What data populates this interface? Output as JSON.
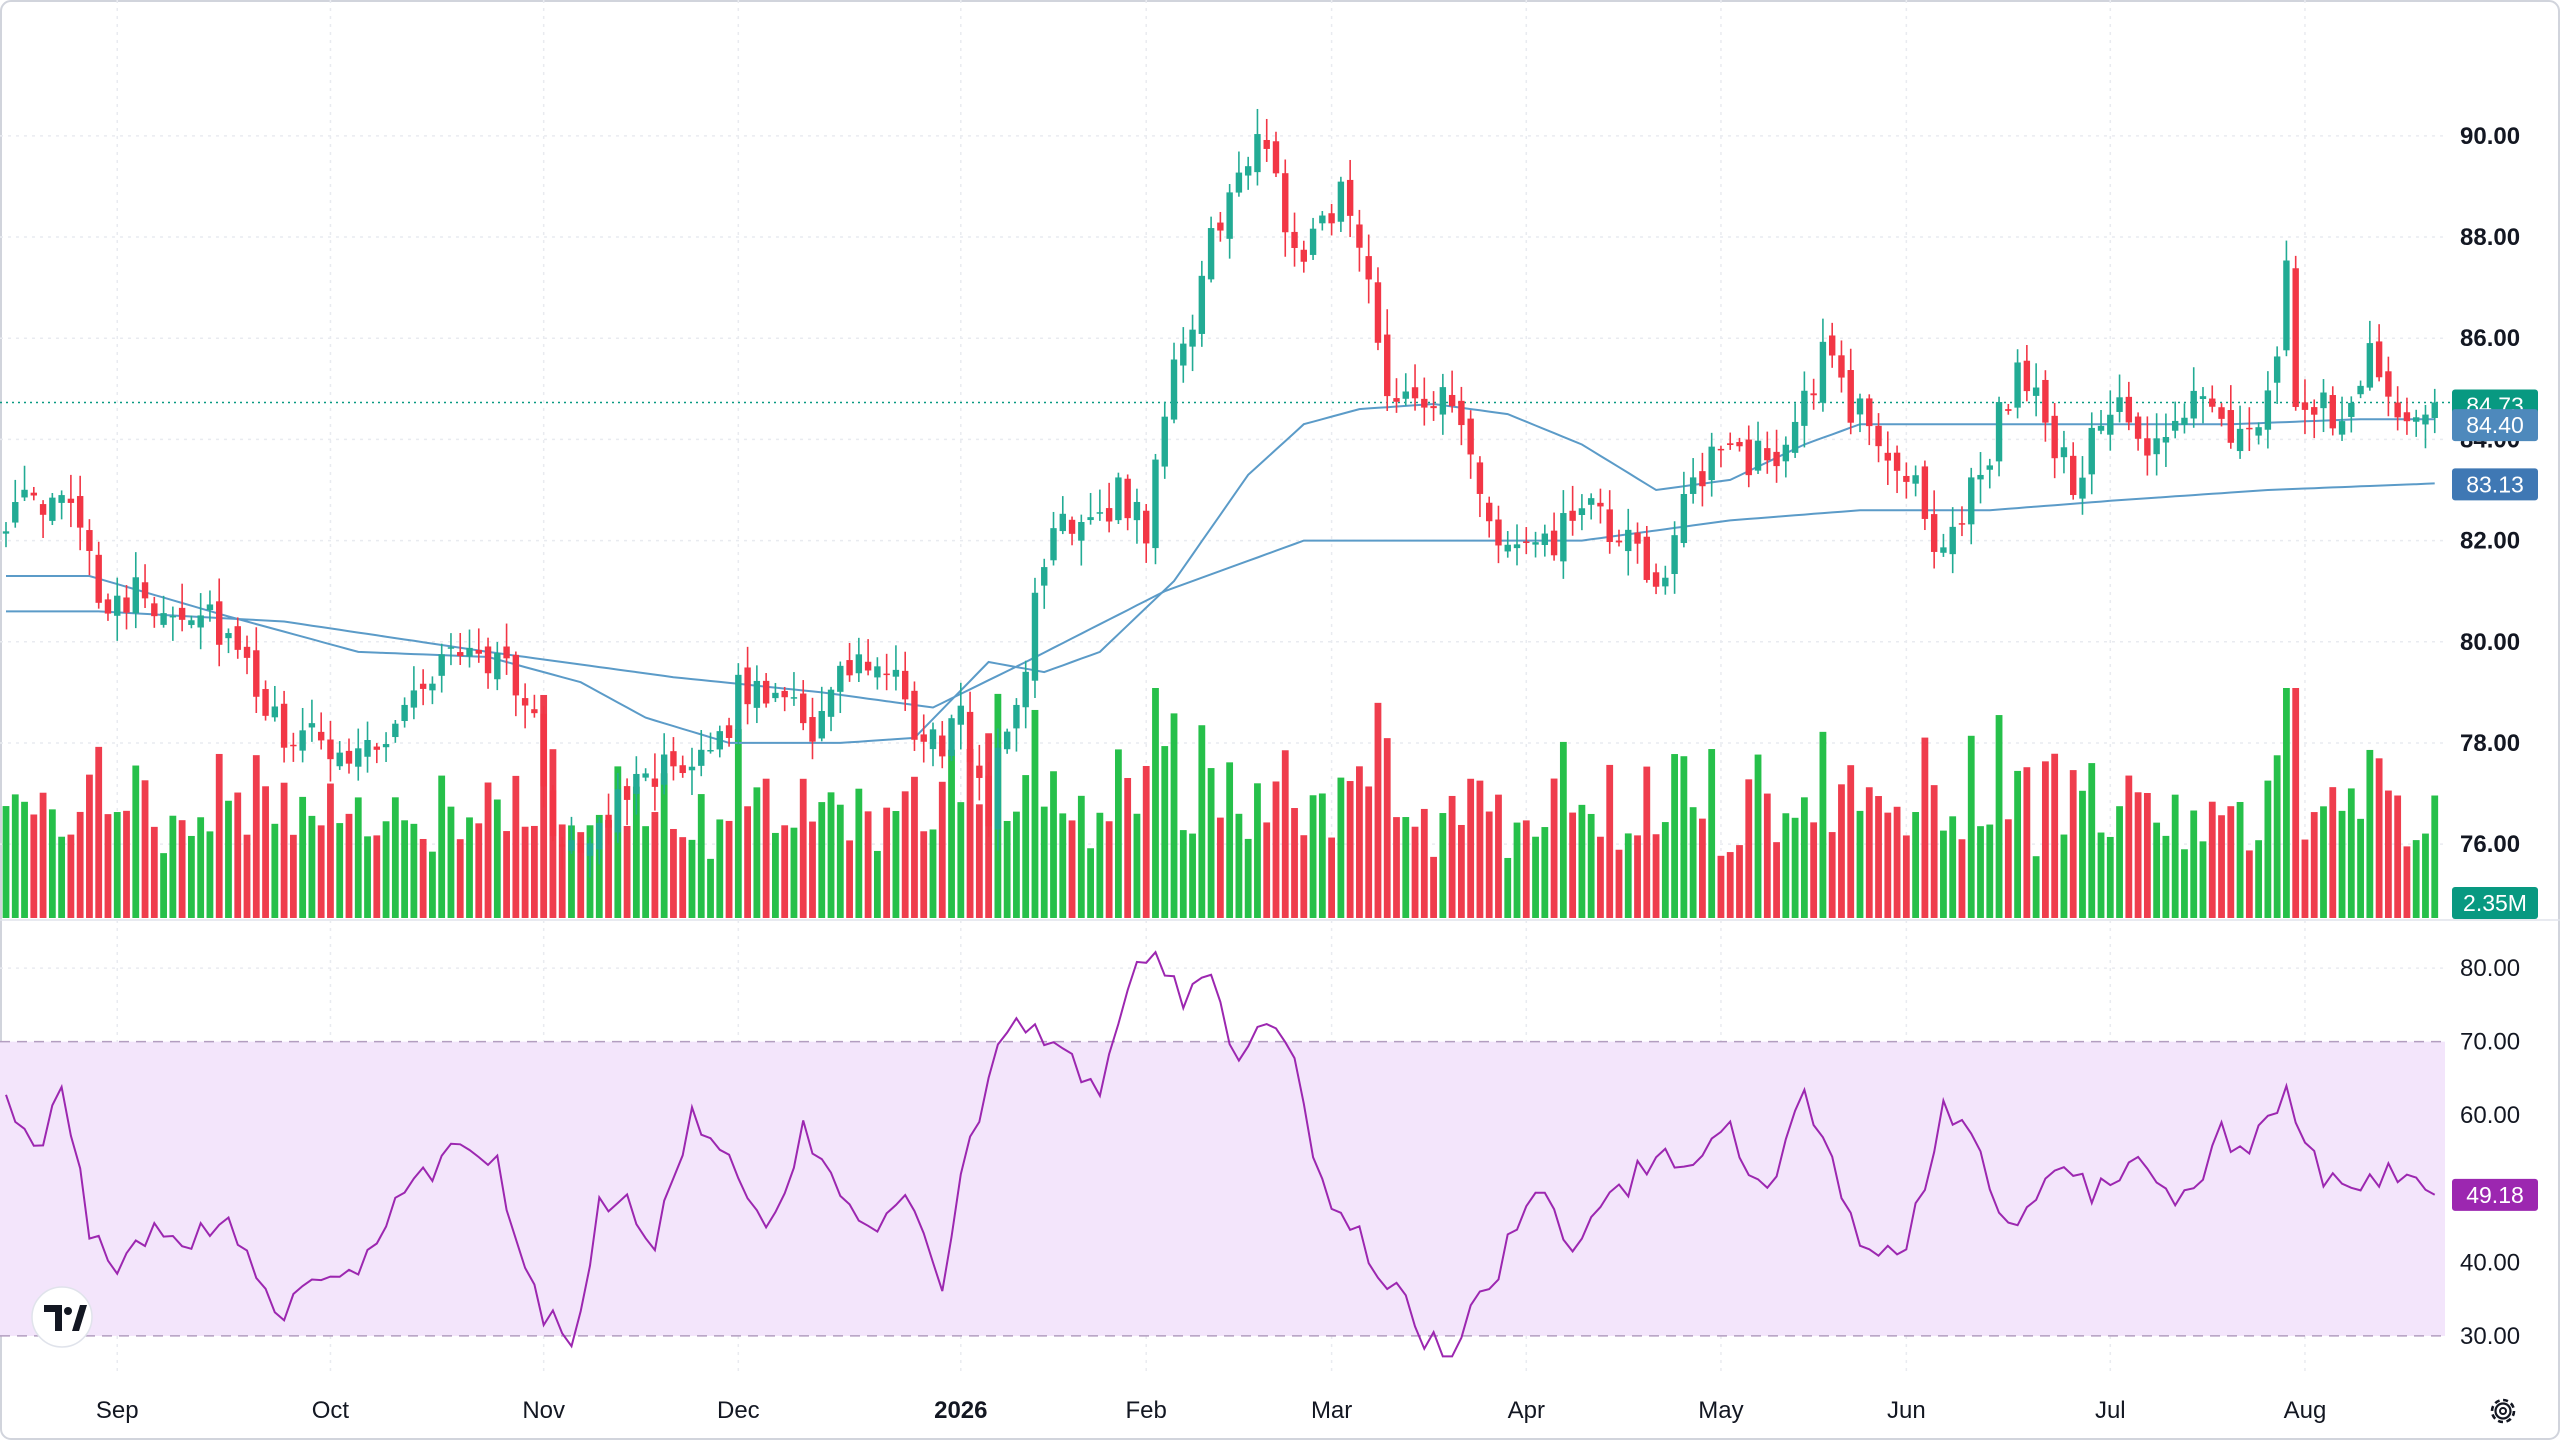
{
  "chart_data": {
    "type": "candlestick",
    "price_pane": {
      "y_ticks": [
        76,
        78,
        80,
        82,
        84,
        86,
        88,
        90
      ],
      "y_tick_labels": [
        "76.00",
        "78.00",
        "80.00",
        "82.00",
        "84.00",
        "86.00",
        "88.00",
        "90.00"
      ],
      "ylim": [
        74.5,
        91.5
      ],
      "last_price": 84.73,
      "last_price_label": "84.73",
      "ma_short_label": "84.40",
      "ma_short_value": 84.4,
      "ma_long_label": "83.13",
      "ma_long_value": 83.13,
      "volume_label": "2.35M"
    },
    "x_axis": {
      "labels": [
        "Sep",
        "Oct",
        "Nov",
        "Dec",
        "2026",
        "Feb",
        "Mar",
        "Apr",
        "May",
        "Jun",
        "Jul",
        "Aug"
      ],
      "bold_labels": [
        "2026"
      ],
      "label_bar_index": [
        12,
        35,
        58,
        79,
        103,
        123,
        143,
        164,
        185,
        205,
        227,
        248
      ]
    },
    "rsi_pane": {
      "y_ticks": [
        30,
        40,
        50,
        60,
        70,
        80
      ],
      "y_tick_labels": [
        "30.00",
        "40.00",
        "",
        "60.00",
        "70.00",
        "80.00"
      ],
      "ylim": [
        27,
        83
      ],
      "band": [
        30,
        70
      ],
      "last_value": 49.18,
      "last_label": "49.18"
    },
    "colors": {
      "up": "#22ab94",
      "down": "#f23645",
      "vol_up": "#26c04a",
      "vol_down": "#ef3d4d",
      "ma": "#5b9bc8",
      "rsi": "#9c27b0",
      "rsi_band": "#f3e5fb",
      "last_tag": "#089981",
      "ma_short_tag": "#4e89bc",
      "ma_long_tag": "#3f78b4",
      "rsi_tag": "#9c27b0"
    },
    "anchors": [
      [
        0,
        82.6
      ],
      [
        8,
        82.6
      ],
      [
        10,
        81.0
      ],
      [
        22,
        80.6
      ],
      [
        29,
        78.3
      ],
      [
        34,
        77.9
      ],
      [
        40,
        78.0
      ],
      [
        46,
        79.4
      ],
      [
        50,
        80.0
      ],
      [
        55,
        79.3
      ],
      [
        57,
        78.2
      ],
      [
        59,
        76.3
      ],
      [
        64,
        76.0
      ],
      [
        68,
        77.7
      ],
      [
        74,
        77.1
      ],
      [
        79,
        78.9
      ],
      [
        84,
        79.2
      ],
      [
        87,
        78.3
      ],
      [
        92,
        79.7
      ],
      [
        96,
        79.0
      ],
      [
        99,
        77.9
      ],
      [
        103,
        78.3
      ],
      [
        106,
        76.8
      ],
      [
        110,
        79.7
      ],
      [
        113,
        82.3
      ],
      [
        120,
        82.9
      ],
      [
        123,
        82.3
      ],
      [
        125,
        84.5
      ],
      [
        131,
        88.5
      ],
      [
        136,
        90.0
      ],
      [
        139,
        87.6
      ],
      [
        144,
        88.9
      ],
      [
        147,
        87.1
      ],
      [
        149,
        85.2
      ],
      [
        156,
        84.6
      ],
      [
        160,
        82.2
      ],
      [
        165,
        81.6
      ],
      [
        170,
        82.6
      ],
      [
        174,
        82.0
      ],
      [
        178,
        81.2
      ],
      [
        181,
        82.6
      ],
      [
        186,
        84.0
      ],
      [
        190,
        83.4
      ],
      [
        196,
        85.6
      ],
      [
        199,
        84.6
      ],
      [
        203,
        83.9
      ],
      [
        209,
        81.8
      ],
      [
        212,
        82.9
      ],
      [
        217,
        85.4
      ],
      [
        223,
        83.2
      ],
      [
        227,
        84.6
      ],
      [
        232,
        83.6
      ],
      [
        237,
        85.0
      ],
      [
        241,
        84.0
      ],
      [
        245,
        85.3
      ],
      [
        246,
        87.2
      ],
      [
        247,
        84.8
      ],
      [
        252,
        84.5
      ],
      [
        255,
        85.9
      ],
      [
        258,
        84.6
      ],
      [
        262,
        84.73
      ]
    ],
    "rsi_anchors": [
      [
        0,
        61
      ],
      [
        3,
        54
      ],
      [
        6,
        64
      ],
      [
        9,
        45
      ],
      [
        12,
        40
      ],
      [
        15,
        44
      ],
      [
        19,
        43
      ],
      [
        24,
        46
      ],
      [
        29,
        32
      ],
      [
        34,
        39
      ],
      [
        38,
        38
      ],
      [
        43,
        50
      ],
      [
        48,
        55
      ],
      [
        53,
        53
      ],
      [
        58,
        33
      ],
      [
        61,
        29
      ],
      [
        64,
        47
      ],
      [
        67,
        48
      ],
      [
        70,
        42
      ],
      [
        74,
        60
      ],
      [
        77,
        57
      ],
      [
        82,
        43
      ],
      [
        86,
        58
      ],
      [
        90,
        51
      ],
      [
        93,
        43
      ],
      [
        97,
        48
      ],
      [
        101,
        38
      ],
      [
        104,
        56
      ],
      [
        108,
        72
      ],
      [
        112,
        71
      ],
      [
        118,
        62
      ],
      [
        121,
        78
      ],
      [
        124,
        81
      ],
      [
        127,
        75
      ],
      [
        130,
        79
      ],
      [
        133,
        67
      ],
      [
        136,
        72
      ],
      [
        139,
        66
      ],
      [
        142,
        51
      ],
      [
        145,
        45
      ],
      [
        149,
        38
      ],
      [
        153,
        30
      ],
      [
        156,
        28
      ],
      [
        160,
        37
      ],
      [
        165,
        50
      ],
      [
        169,
        41
      ],
      [
        173,
        48
      ],
      [
        178,
        55
      ],
      [
        182,
        52
      ],
      [
        186,
        58
      ],
      [
        190,
        49
      ],
      [
        194,
        63
      ],
      [
        197,
        53
      ],
      [
        201,
        40
      ],
      [
        205,
        42
      ],
      [
        209,
        60
      ],
      [
        213,
        55
      ],
      [
        216,
        44
      ],
      [
        220,
        52
      ],
      [
        225,
        50
      ],
      [
        230,
        54
      ],
      [
        235,
        48
      ],
      [
        239,
        58
      ],
      [
        242,
        55
      ],
      [
        246,
        62
      ],
      [
        250,
        51
      ],
      [
        256,
        52
      ],
      [
        262,
        49.2
      ]
    ],
    "ma_short_anchors": [
      [
        0,
        81.3
      ],
      [
        9,
        81.3
      ],
      [
        24,
        80.5
      ],
      [
        38,
        79.8
      ],
      [
        52,
        79.7
      ],
      [
        62,
        79.2
      ],
      [
        69,
        78.5
      ],
      [
        78,
        78.0
      ],
      [
        90,
        78.0
      ],
      [
        98,
        78.1
      ],
      [
        106,
        79.6
      ],
      [
        112,
        79.4
      ],
      [
        118,
        79.8
      ],
      [
        126,
        81.2
      ],
      [
        134,
        83.3
      ],
      [
        140,
        84.3
      ],
      [
        146,
        84.6
      ],
      [
        154,
        84.7
      ],
      [
        162,
        84.5
      ],
      [
        170,
        83.9
      ],
      [
        178,
        83.0
      ],
      [
        186,
        83.2
      ],
      [
        194,
        83.9
      ],
      [
        200,
        84.3
      ],
      [
        206,
        84.3
      ],
      [
        214,
        84.3
      ],
      [
        222,
        84.3
      ],
      [
        230,
        84.3
      ],
      [
        240,
        84.3
      ],
      [
        254,
        84.4
      ],
      [
        262,
        84.4
      ]
    ],
    "ma_long_anchors": [
      [
        0,
        80.6
      ],
      [
        10,
        80.6
      ],
      [
        30,
        80.4
      ],
      [
        52,
        79.8
      ],
      [
        72,
        79.3
      ],
      [
        88,
        79.0
      ],
      [
        100,
        78.7
      ],
      [
        110,
        79.6
      ],
      [
        125,
        81.0
      ],
      [
        140,
        82.0
      ],
      [
        152,
        82.0
      ],
      [
        170,
        82.0
      ],
      [
        186,
        82.4
      ],
      [
        200,
        82.6
      ],
      [
        214,
        82.6
      ],
      [
        228,
        82.8
      ],
      [
        244,
        83.0
      ],
      [
        262,
        83.13
      ]
    ]
  }
}
